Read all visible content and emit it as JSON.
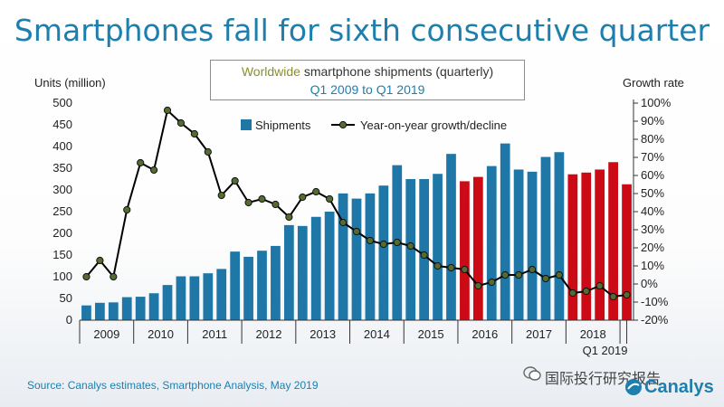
{
  "page": {
    "title": "Smartphones fall for sixth consecutive quarter",
    "subtitle_word1": "Worldwide",
    "subtitle_rest": " smartphone shipments (quarterly)",
    "subtitle_dates": "Q1 2009 to Q1 2019",
    "source": "Source: Canalys estimates, Smartphone Analysis, May 2019",
    "footer_cn": "国际投行研究报告",
    "brand": "Canalys"
  },
  "chart_data": {
    "type": "bar",
    "ylabel": "Units (million)",
    "ylabel_right": "Growth rate",
    "ylim": [
      0,
      500
    ],
    "ylim_right": [
      -20,
      100
    ],
    "yticks": [
      "0",
      "50",
      "100",
      "150",
      "200",
      "250",
      "300",
      "350",
      "400",
      "450",
      "500"
    ],
    "yticks_right": [
      "-20%",
      "-10%",
      "0%",
      "10%",
      "20%",
      "30%",
      "40%",
      "50%",
      "60%",
      "70%",
      "80%",
      "90%",
      "100%"
    ],
    "year_labels": [
      "2009",
      "2010",
      "2011",
      "2012",
      "2013",
      "2014",
      "2015",
      "2016",
      "2017",
      "2018"
    ],
    "extra_label": "Q1 2019",
    "legend": [
      "Shipments",
      "Year-on-year growth/decline"
    ],
    "colors": {
      "shipments": "#1f77a8",
      "decline": "#cc0a16",
      "growth": "#000000",
      "marker": "#556b2f"
    },
    "series": [
      {
        "name": "Shipments",
        "values": [
          34,
          40,
          41,
          53,
          54,
          62,
          81,
          101,
          101,
          108,
          118,
          158,
          146,
          160,
          171,
          219,
          217,
          238,
          250,
          292,
          280,
          292,
          310,
          357,
          325,
          325,
          337,
          383,
          320,
          330,
          355,
          407,
          347,
          342,
          376,
          387,
          336,
          340,
          347,
          364,
          313
        ],
        "decline_from_index": 28
      },
      {
        "name": "Year-on-year growth/decline",
        "values": [
          4,
          13,
          4,
          41,
          67,
          63,
          96,
          89,
          83,
          73,
          49,
          57,
          45,
          47,
          44,
          37,
          48,
          51,
          47,
          34,
          29,
          24,
          22,
          23,
          21,
          16,
          10,
          9,
          8,
          -1,
          1,
          5,
          5,
          8,
          3,
          5,
          -5,
          -4,
          -1,
          -7,
          -6
        ]
      }
    ]
  }
}
